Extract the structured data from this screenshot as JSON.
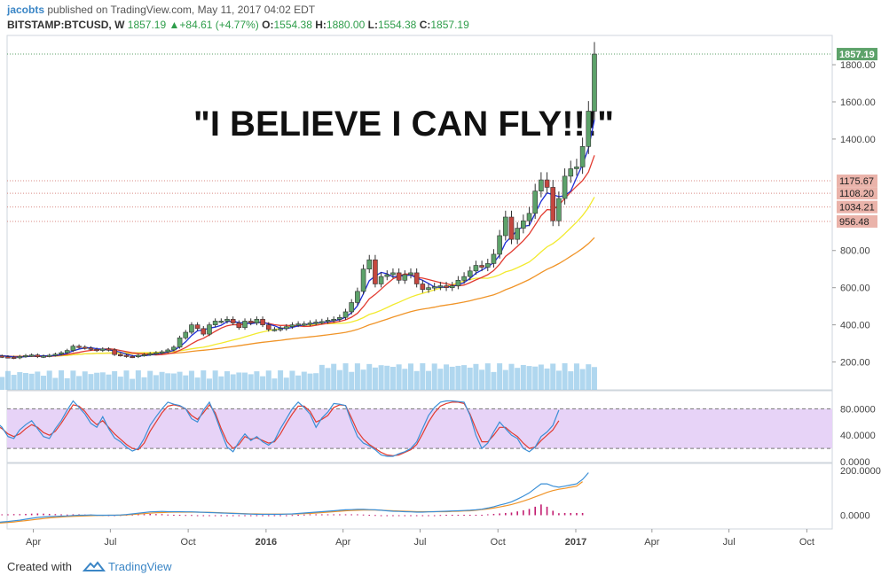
{
  "header": {
    "author": "jacobts",
    "published_text": "published on TradingView.com, May 11, 2017 04:02 EDT",
    "symbol": "BITSTAMP:BTCUSD, W",
    "last": "1857.19",
    "change": "+84.61 (+4.77%)",
    "o_label": "O:",
    "o_value": "1554.38",
    "h_label": "H:",
    "h_value": "1880.00",
    "l_label": "L:",
    "l_value": "1554.38",
    "c_label": "C:",
    "c_value": "1857.19"
  },
  "footer": {
    "created_with": "Created with",
    "brand": "TradingView"
  },
  "colors": {
    "up": "#5da26a",
    "down": "#c5473f",
    "rsi_band": "#e7d3f7",
    "sma_fast": "#1f2fd6",
    "sma_mid": "#e23b30",
    "sma_slow": "#f2ea2e",
    "sma_long": "#f09428",
    "volume": "#8fc6e8",
    "macd": "#3b8fd6",
    "signal": "#f09428",
    "hist": "#c21b6f",
    "last_label": "#5da26a",
    "level_label": "#eab3aa"
  },
  "chart_data": {
    "type": "candlestick",
    "annotation": "\"I BELIEVE I CAN FLY!!!\"",
    "price_ticks": [
      200,
      400,
      600,
      800,
      1400,
      1600,
      1800
    ],
    "price_tick_labels": [
      "200.00",
      "400.00",
      "600.00",
      "800.00",
      "1400.00",
      "1600.00",
      "1800.00"
    ],
    "last_price": 1857.19,
    "last_price_label": "1857.19",
    "levels": [
      1175.67,
      1108.2,
      1034.21,
      956.48
    ],
    "level_labels": [
      "1175.67",
      "1108.20",
      "1034.21",
      "956.48"
    ],
    "x_tick_labels": [
      "Apr",
      "Jul",
      "Oct",
      "2016",
      "Apr",
      "Jul",
      "Oct",
      "2017",
      "Apr",
      "Jul",
      "Oct"
    ],
    "x_tick_months": [
      "2015-04",
      "2015-07",
      "2015-10",
      "2016-01",
      "2016-04",
      "2016-07",
      "2016-10",
      "2017-01",
      "2017-04",
      "2017-07",
      "2017-10"
    ],
    "candles_close": [
      240,
      232,
      228,
      226,
      222,
      230,
      235,
      238,
      228,
      232,
      236,
      242,
      250,
      262,
      285,
      280,
      275,
      268,
      262,
      270,
      265,
      240,
      236,
      230,
      228,
      236,
      240,
      245,
      250,
      255,
      265,
      280,
      330,
      360,
      400,
      380,
      350,
      400,
      420,
      420,
      430,
      410,
      385,
      420,
      410,
      430,
      400,
      375,
      375,
      380,
      390,
      400,
      405,
      405,
      410,
      415,
      418,
      425,
      430,
      440,
      470,
      520,
      580,
      700,
      750,
      620,
      660,
      670,
      680,
      640,
      670,
      680,
      620,
      590,
      600,
      605,
      610,
      600,
      610,
      640,
      660,
      690,
      720,
      710,
      730,
      780,
      880,
      980,
      860,
      920,
      960,
      1000,
      1120,
      1180,
      1140,
      960,
      1080,
      1200,
      1240,
      1250,
      1360,
      1550,
      1857
    ],
    "rsi_ticks": [
      "0.0000",
      "40.0000",
      "80.0000"
    ],
    "rsi_blue": [
      50,
      60,
      52,
      38,
      35,
      48,
      56,
      62,
      50,
      38,
      35,
      50,
      62,
      78,
      92,
      82,
      72,
      58,
      52,
      68,
      50,
      36,
      30,
      22,
      16,
      20,
      35,
      55,
      68,
      80,
      90,
      87,
      85,
      80,
      65,
      60,
      78,
      90,
      70,
      45,
      22,
      15,
      30,
      42,
      32,
      38,
      30,
      25,
      32,
      50,
      65,
      80,
      90,
      82,
      72,
      52,
      66,
      75,
      88,
      87,
      85,
      60,
      38,
      28,
      24,
      18,
      10,
      8,
      8,
      12,
      15,
      20,
      30,
      50,
      70,
      82,
      90,
      92,
      92,
      91,
      90,
      70,
      40,
      20,
      28,
      45,
      60,
      50,
      40,
      35,
      20,
      15,
      22,
      38,
      45,
      55,
      78
    ],
    "rsi_red": [
      44,
      55,
      50,
      42,
      38,
      42,
      50,
      56,
      52,
      44,
      40,
      46,
      58,
      72,
      86,
      84,
      76,
      64,
      56,
      62,
      52,
      42,
      34,
      26,
      20,
      18,
      28,
      46,
      60,
      74,
      84,
      86,
      84,
      80,
      70,
      64,
      74,
      86,
      74,
      50,
      30,
      20,
      26,
      38,
      34,
      36,
      32,
      28,
      30,
      42,
      58,
      72,
      84,
      84,
      76,
      60,
      64,
      70,
      82,
      86,
      85,
      66,
      46,
      34,
      26,
      20,
      14,
      10,
      9,
      10,
      14,
      18,
      26,
      42,
      60,
      74,
      84,
      88,
      90,
      90,
      88,
      72,
      50,
      30,
      30,
      40,
      52,
      52,
      44,
      38,
      28,
      20,
      22,
      32,
      40,
      48,
      62
    ],
    "macd_ticks": [
      "0.0000",
      "200.0000"
    ],
    "macd_line": [
      -35,
      -33,
      -30,
      -28,
      -25,
      -22,
      -18,
      -14,
      -10,
      -8,
      -6,
      -5,
      -4,
      -3,
      -1,
      0,
      0,
      1,
      0,
      0,
      0,
      0,
      1,
      3,
      6,
      9,
      12,
      15,
      16,
      17,
      16,
      16,
      16,
      15,
      15,
      14,
      13,
      12,
      11,
      10,
      9,
      8,
      7,
      6,
      5,
      4,
      4,
      4,
      4,
      4,
      5,
      6,
      8,
      10,
      12,
      14,
      16,
      18,
      20,
      22,
      24,
      25,
      26,
      26,
      25,
      24,
      22,
      20,
      18,
      17,
      16,
      15,
      14,
      14,
      15,
      16,
      17,
      18,
      19,
      20,
      21,
      22,
      24,
      27,
      32,
      38,
      45,
      52,
      60,
      72,
      85,
      100,
      120,
      140,
      140,
      130,
      125,
      130,
      135,
      140,
      160,
      190
    ],
    "signal_line": [
      -38,
      -36,
      -34,
      -32,
      -30,
      -27,
      -24,
      -21,
      -18,
      -15,
      -12,
      -10,
      -8,
      -6,
      -5,
      -4,
      -3,
      -2,
      -1,
      -1,
      0,
      0,
      0,
      1,
      3,
      5,
      7,
      9,
      11,
      12,
      13,
      14,
      14,
      14,
      14,
      14,
      13,
      13,
      12,
      11,
      10,
      9,
      8,
      7,
      6,
      6,
      5,
      5,
      5,
      5,
      5,
      5,
      6,
      7,
      8,
      10,
      12,
      14,
      16,
      18,
      20,
      21,
      22,
      23,
      23,
      23,
      22,
      21,
      20,
      19,
      18,
      17,
      16,
      16,
      16,
      16,
      16,
      16,
      17,
      18,
      19,
      20,
      22,
      25,
      28,
      32,
      37,
      42,
      48,
      55,
      63,
      72,
      82,
      92,
      102,
      110,
      116,
      120,
      125,
      130,
      150
    ]
  }
}
